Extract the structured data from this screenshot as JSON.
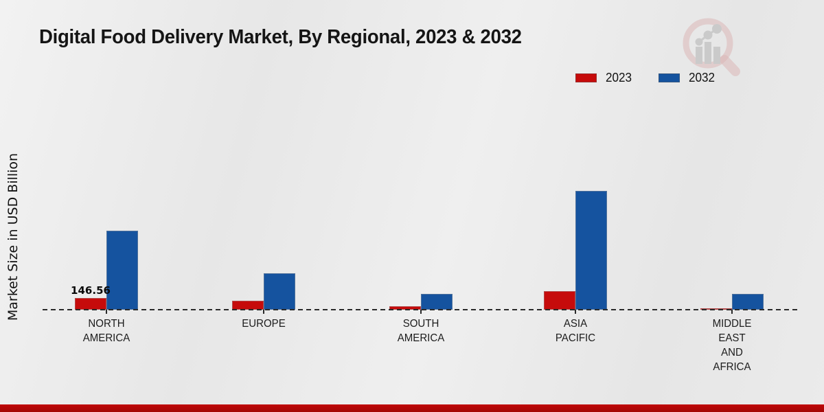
{
  "title": "Digital Food Delivery Market, By Regional, 2023 & 2032",
  "y_axis_label": "Market Size in USD Billion",
  "legend": {
    "position": "top-right",
    "items": [
      {
        "label": "2023",
        "color": "#c60b0b"
      },
      {
        "label": "2032",
        "color": "#15539f"
      }
    ]
  },
  "colors": {
    "bar_2023": "#c60b0b",
    "bar_2032": "#15539f",
    "background": "#eaeaea",
    "axis_dash": "#2a2a2a",
    "footer_red": "#c00707",
    "title_text": "#151515",
    "watermark_ring": "#d9afaf",
    "watermark_bars": "#c6c6c6"
  },
  "chart_data": {
    "type": "bar",
    "title": "Digital Food Delivery Market, By Regional, 2023 & 2032",
    "xlabel": "",
    "ylabel": "Market Size in USD Billion",
    "grid": false,
    "baseline_style": "dashed",
    "legend_position": "top-right",
    "categories": [
      "NORTH AMERICA",
      "EUROPE",
      "SOUTH AMERICA",
      "ASIA PACIFIC",
      "MIDDLE EAST AND AFRICA"
    ],
    "categories_lines": [
      [
        "NORTH",
        "AMERICA"
      ],
      [
        "EUROPE"
      ],
      [
        "SOUTH",
        "AMERICA"
      ],
      [
        "ASIA",
        "PACIFIC"
      ],
      [
        "MIDDLE",
        "EAST",
        "AND",
        "AFRICA"
      ]
    ],
    "series": [
      {
        "name": "2023",
        "color": "#c60b0b",
        "values": [
          146.56,
          108,
          40,
          235,
          20
        ]
      },
      {
        "name": "2032",
        "color": "#15539f",
        "values": [
          990,
          455,
          198,
          1490,
          200
        ]
      }
    ],
    "bar_label": {
      "series_index": 0,
      "category_index": 0,
      "text": "146.56"
    },
    "ylim": [
      0,
      1600
    ],
    "unit": "USD Billion"
  }
}
